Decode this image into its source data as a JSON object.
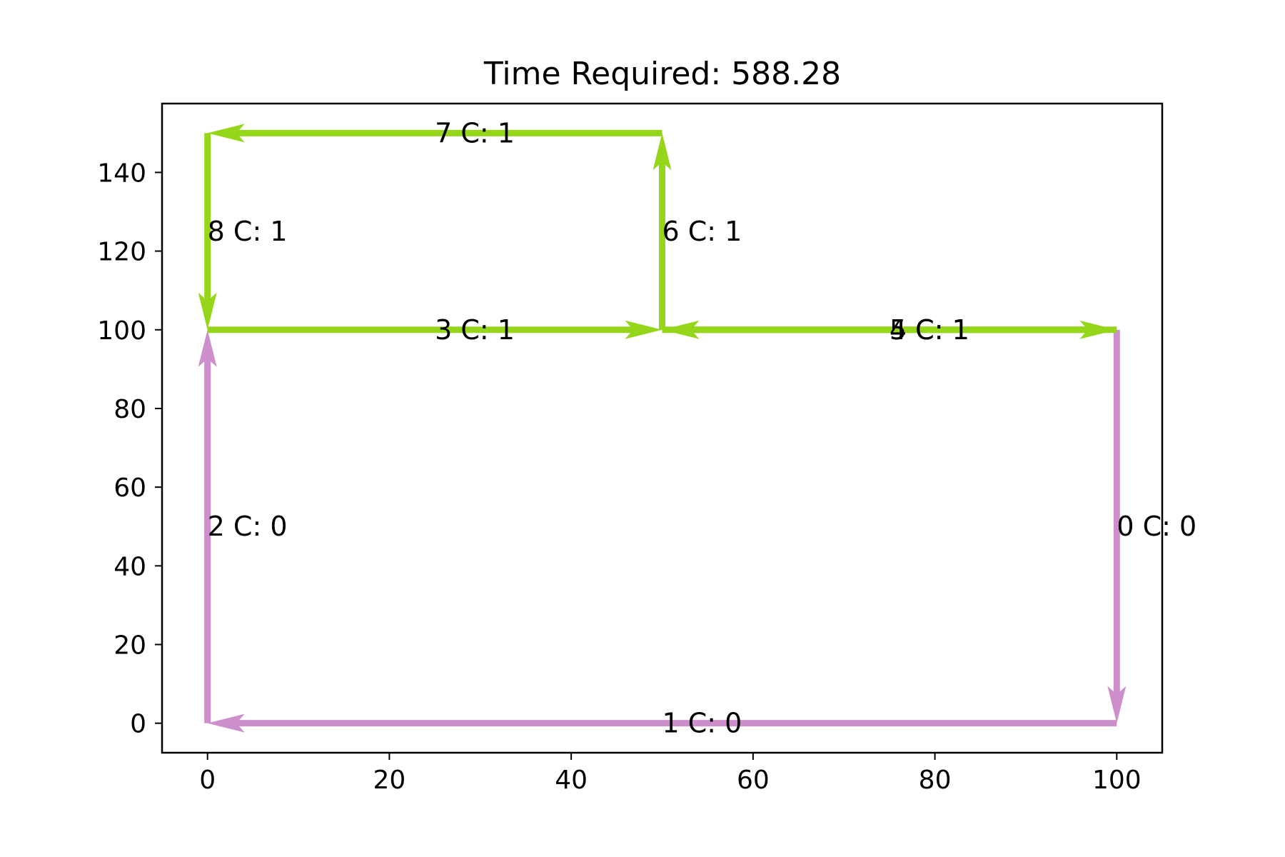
{
  "chart_data": {
    "type": "line",
    "title": "Time Required: 588.28",
    "xlabel": "",
    "ylabel": "",
    "xlim": [
      -5,
      105
    ],
    "ylim": [
      -7.5,
      157.5
    ],
    "xticks": [
      0,
      20,
      40,
      60,
      80,
      100
    ],
    "yticks": [
      0,
      20,
      40,
      60,
      80,
      100,
      120,
      140
    ],
    "grid": false,
    "colors": {
      "C0": "#cc8fcc",
      "C1": "#95d61a"
    },
    "edges": [
      {
        "id": 0,
        "label": "0 C: 0",
        "cluster": 0,
        "from": [
          100,
          100
        ],
        "to": [
          100,
          0
        ]
      },
      {
        "id": 1,
        "label": "1 C: 0",
        "cluster": 0,
        "from": [
          100,
          0
        ],
        "to": [
          0,
          0
        ]
      },
      {
        "id": 2,
        "label": "2 C: 0",
        "cluster": 0,
        "from": [
          0,
          0
        ],
        "to": [
          0,
          100
        ]
      },
      {
        "id": 3,
        "label": "3 C: 1",
        "cluster": 1,
        "from": [
          0,
          100
        ],
        "to": [
          50,
          100
        ]
      },
      {
        "id": 4,
        "label": "4 C: 1",
        "cluster": 1,
        "from": [
          50,
          100
        ],
        "to": [
          100,
          100
        ]
      },
      {
        "id": 5,
        "label": "5 C: 1",
        "cluster": 1,
        "from": [
          100,
          100
        ],
        "to": [
          50,
          100
        ]
      },
      {
        "id": 6,
        "label": "6 C: 1",
        "cluster": 1,
        "from": [
          50,
          100
        ],
        "to": [
          50,
          150
        ]
      },
      {
        "id": 7,
        "label": "7 C: 1",
        "cluster": 1,
        "from": [
          50,
          150
        ],
        "to": [
          0,
          150
        ]
      },
      {
        "id": 8,
        "label": "8 C: 1",
        "cluster": 1,
        "from": [
          0,
          150
        ],
        "to": [
          0,
          100
        ]
      }
    ]
  }
}
